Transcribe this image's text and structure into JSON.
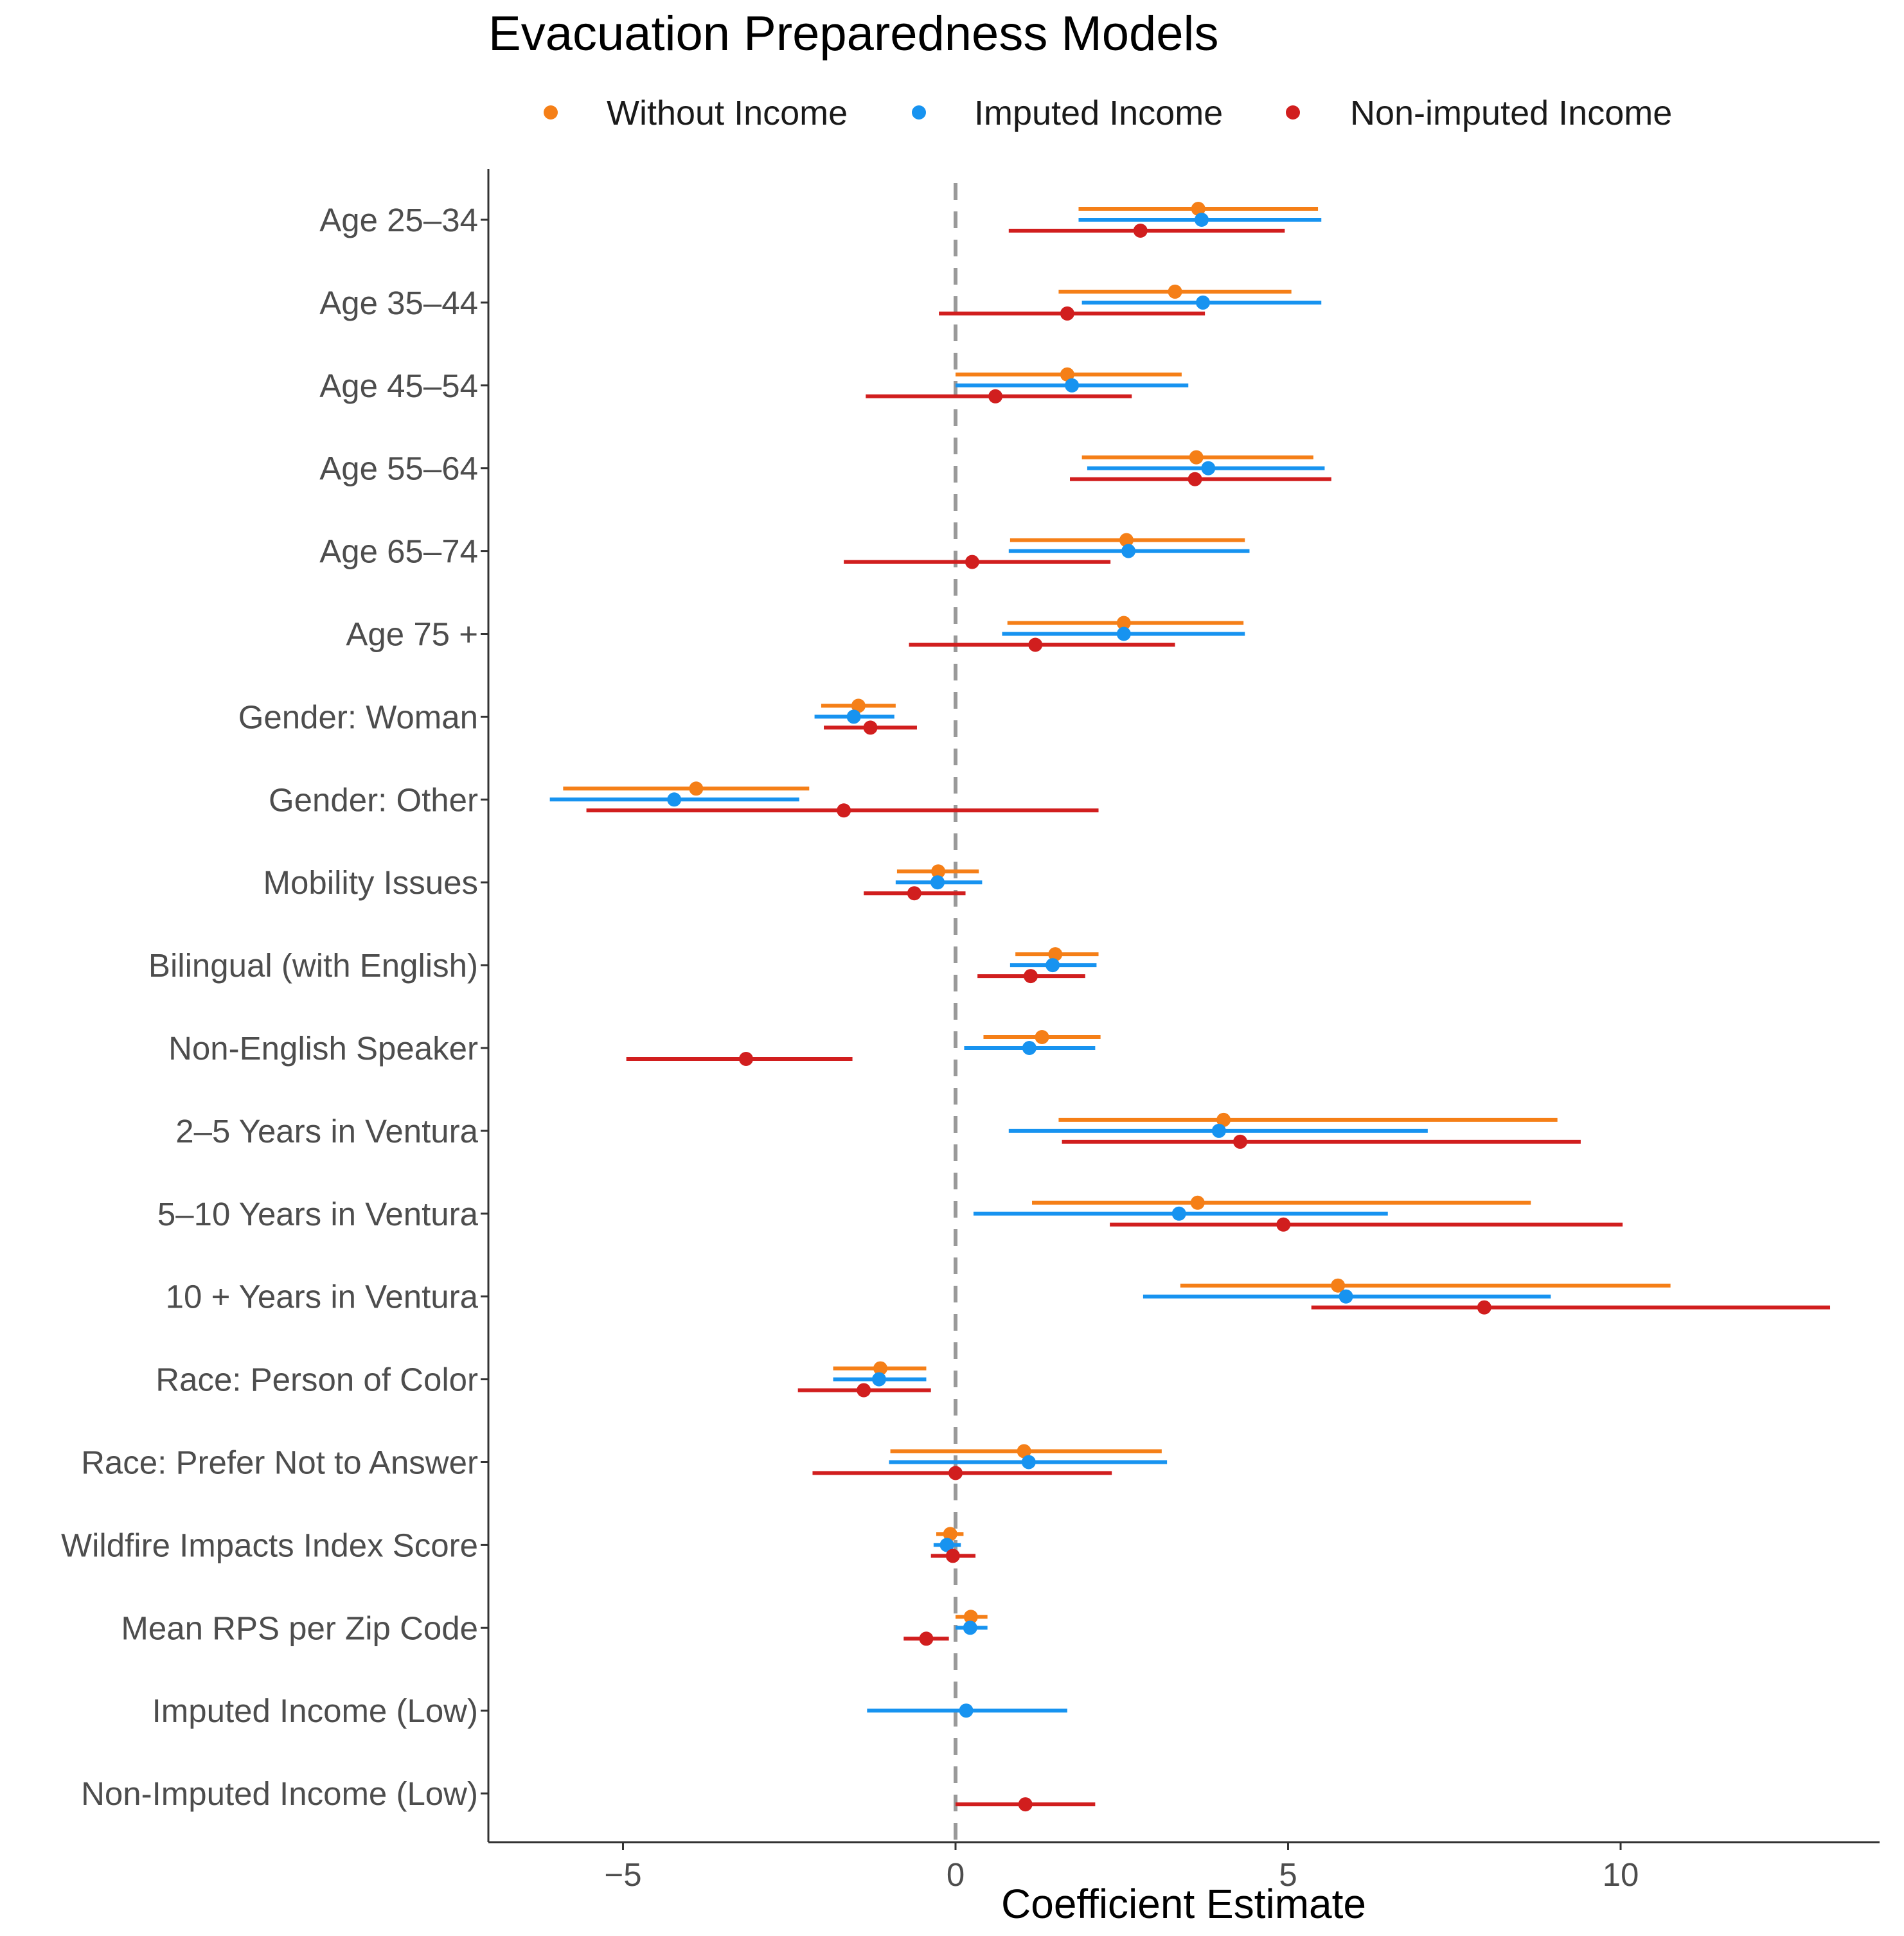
{
  "chart_data": {
    "type": "forest",
    "title": "Evacuation Preparedness Models",
    "xlabel": "Coefficient Estimate",
    "ylabel": "",
    "xlim": [
      -7.1,
      13.9
    ],
    "xticks": [
      -5,
      0,
      5,
      10
    ],
    "xtick_labels": [
      "−5",
      "0",
      "5",
      "10"
    ],
    "reference_line": 0,
    "grid": false,
    "legend_position": "top",
    "categories": [
      "Age 25–34",
      "Age 35–44",
      "Age 45–54",
      "Age 55–64",
      "Age 65–74",
      "Age 75 +",
      "Gender: Woman",
      "Gender: Other",
      "Mobility Issues",
      "Bilingual (with English)",
      "Non-English Speaker",
      "2–5 Years in Ventura",
      "5–10 Years in Ventura",
      "10 + Years in Ventura",
      "Race: Person of Color",
      "Race: Prefer Not to Answer",
      "Wildfire Impacts Index Score",
      "Mean RPS per Zip Code",
      "Imputed Income (Low)",
      "Non-Imputed Income (Low)"
    ],
    "series": [
      {
        "name": "Without Income",
        "color": "#F57F17",
        "estimates": [
          3.65,
          3.3,
          1.68,
          3.62,
          2.57,
          2.53,
          -1.46,
          -3.9,
          -0.26,
          1.5,
          1.3,
          4.03,
          3.64,
          5.75,
          -1.13,
          1.03,
          -0.08,
          0.23,
          null,
          null
        ],
        "lower": [
          1.85,
          1.55,
          0.0,
          1.9,
          0.82,
          0.78,
          -2.02,
          -5.9,
          -0.88,
          0.9,
          0.42,
          1.55,
          1.15,
          3.38,
          -1.84,
          -0.98,
          -0.29,
          0.0,
          null,
          null
        ],
        "upper": [
          5.45,
          5.05,
          3.4,
          5.38,
          4.35,
          4.33,
          -0.9,
          -2.2,
          0.35,
          2.15,
          2.18,
          9.05,
          8.65,
          10.75,
          -0.44,
          3.1,
          0.12,
          0.48,
          null,
          null
        ]
      },
      {
        "name": "Imputed Income",
        "color": "#1793F0",
        "estimates": [
          3.7,
          3.72,
          1.75,
          3.8,
          2.6,
          2.53,
          -1.53,
          -4.23,
          -0.27,
          1.46,
          1.11,
          3.96,
          3.36,
          5.87,
          -1.15,
          1.1,
          -0.13,
          0.22,
          0.16,
          null
        ],
        "lower": [
          1.85,
          1.9,
          0.0,
          1.98,
          0.8,
          0.7,
          -2.12,
          -6.1,
          -0.9,
          0.82,
          0.13,
          0.8,
          0.27,
          2.82,
          -1.84,
          -1.0,
          -0.33,
          0.0,
          -1.33,
          null
        ],
        "upper": [
          5.5,
          5.5,
          3.5,
          5.55,
          4.42,
          4.35,
          -0.92,
          -2.35,
          0.4,
          2.12,
          2.1,
          7.1,
          6.5,
          8.95,
          -0.44,
          3.18,
          0.08,
          0.48,
          1.68,
          null
        ]
      },
      {
        "name": "Non-imputed Income",
        "color": "#D11E1E",
        "estimates": [
          2.78,
          1.68,
          0.6,
          3.6,
          0.25,
          1.2,
          -1.28,
          -1.68,
          -0.62,
          1.13,
          -3.15,
          4.28,
          4.93,
          7.95,
          -1.38,
          0.0,
          -0.04,
          -0.44,
          null,
          1.05
        ],
        "lower": [
          0.8,
          -0.25,
          -1.35,
          1.72,
          -1.68,
          -0.7,
          -1.98,
          -5.55,
          -1.38,
          0.33,
          -4.95,
          1.6,
          2.32,
          5.35,
          -2.37,
          -2.15,
          -0.37,
          -0.78,
          null,
          0.0
        ],
        "upper": [
          4.95,
          3.75,
          2.65,
          5.65,
          2.33,
          3.3,
          -0.58,
          2.15,
          0.15,
          1.95,
          -1.55,
          9.4,
          10.03,
          13.15,
          -0.37,
          2.35,
          0.3,
          -0.1,
          null,
          2.1
        ]
      }
    ]
  }
}
